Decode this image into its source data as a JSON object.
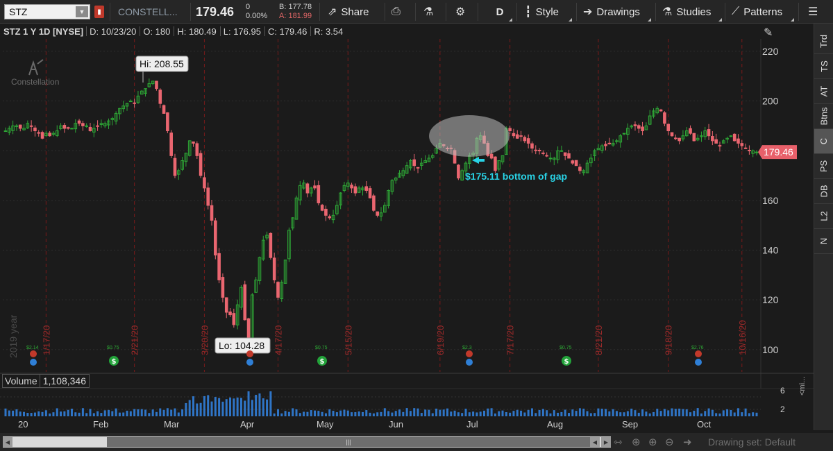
{
  "toolbar": {
    "symbol": "STZ",
    "company": "CONSTELL...",
    "last": "179.46",
    "change": "0",
    "change_pct": "0.00%",
    "bid": "B: 177.78",
    "ask": "A: 181.99",
    "share_label": "Share",
    "period_label": "D",
    "style_label": "Style",
    "drawings_label": "Drawings",
    "studies_label": "Studies",
    "patterns_label": "Patterns"
  },
  "info": {
    "title": "STZ 1 Y 1D [NYSE]",
    "date": "D: 10/23/20",
    "open": "O: 180",
    "high": "H: 180.49",
    "low": "L: 176.95",
    "close": "C: 179.46",
    "range": "R: 3.54"
  },
  "chart": {
    "logo_text": "Constellation",
    "year_label": "2019 year",
    "hi_label": "Hi: 208.55",
    "lo_label": "Lo: 104.28",
    "annotation": "$175.11 bottom of gap",
    "price_tag": "179.46",
    "colors": {
      "up": "#2ea836",
      "down": "#ea6670",
      "grid_red": "#7a1b1b",
      "annotation": "#29d3e6"
    }
  },
  "volume": {
    "label": "Volume",
    "value": "1,108,346",
    "axis": [
      "6",
      "2"
    ]
  },
  "months": [
    "20",
    "Feb",
    "Mar",
    "Apr",
    "May",
    "Jun",
    "Jul",
    "Aug",
    "Sep",
    "Oct"
  ],
  "sidepanel": [
    "Trd",
    "TS",
    "AT",
    "Btns",
    "C",
    "PS",
    "DB",
    "L2",
    "N"
  ],
  "bottom": {
    "drawing_set": "Drawing set: Default"
  },
  "mini_label": "<mi...",
  "chart_data": {
    "type": "candlestick",
    "title": "STZ 1 Y 1D [NYSE]",
    "ylim": [
      91,
      225
    ],
    "y_ticks": [
      100,
      120,
      140,
      160,
      180,
      200,
      220
    ],
    "x_months": [
      "20",
      "Feb",
      "Mar",
      "Apr",
      "May",
      "Jun",
      "Jul",
      "Aug",
      "Sep",
      "Oct"
    ],
    "x_date_ticks": [
      "1/17/20",
      "2/21/20",
      "3/20/20",
      "4/17/20",
      "5/15/20",
      "6/19/20",
      "7/17/20",
      "8/21/20",
      "9/18/20",
      "10/16/20"
    ],
    "high_marker": 208.55,
    "low_marker": 104.28,
    "last": 179.46,
    "gap_bottom": 175.11,
    "closes": [
      188,
      189,
      190,
      190,
      189,
      189,
      191,
      190,
      188,
      187,
      185,
      187,
      186,
      187,
      188,
      190,
      189,
      189,
      189,
      191,
      191,
      190,
      190,
      188,
      189,
      190,
      191,
      191,
      192,
      193,
      195,
      197,
      198,
      199,
      200,
      199,
      202,
      204,
      205,
      207,
      208,
      205,
      199,
      195,
      188,
      178,
      170,
      172,
      176,
      179,
      184,
      183,
      178,
      170,
      165,
      158,
      152,
      138,
      128,
      121,
      115,
      114,
      110,
      118,
      125,
      112,
      104,
      122,
      128,
      137,
      144,
      146,
      137,
      128,
      121,
      127,
      136,
      148,
      153,
      161,
      166,
      167,
      163,
      165,
      165,
      159,
      156,
      154,
      153,
      154,
      158,
      163,
      166,
      167,
      165,
      163,
      165,
      165,
      164,
      161,
      156,
      154,
      155,
      158,
      164,
      168,
      169,
      171,
      172,
      174,
      176,
      174,
      173,
      175,
      176,
      177,
      178,
      181,
      183,
      182,
      181,
      181,
      175,
      169,
      172,
      175,
      178,
      179,
      185,
      186,
      183,
      178,
      177,
      172,
      176,
      178,
      189,
      188,
      186,
      185,
      186,
      184,
      183,
      181,
      180,
      180,
      179,
      178,
      177,
      177,
      180,
      180,
      178,
      177,
      175,
      174,
      172,
      172,
      175,
      177,
      180,
      181,
      182,
      182,
      183,
      183,
      184,
      186,
      187,
      189,
      190,
      190,
      189,
      188,
      190,
      194,
      196,
      197,
      196,
      191,
      188,
      186,
      185,
      184,
      186,
      188,
      187,
      184,
      185,
      186,
      188,
      186,
      184,
      183,
      182,
      184,
      185,
      186,
      184,
      183,
      182,
      181,
      180,
      180,
      179.46
    ],
    "volume_bars": true
  }
}
